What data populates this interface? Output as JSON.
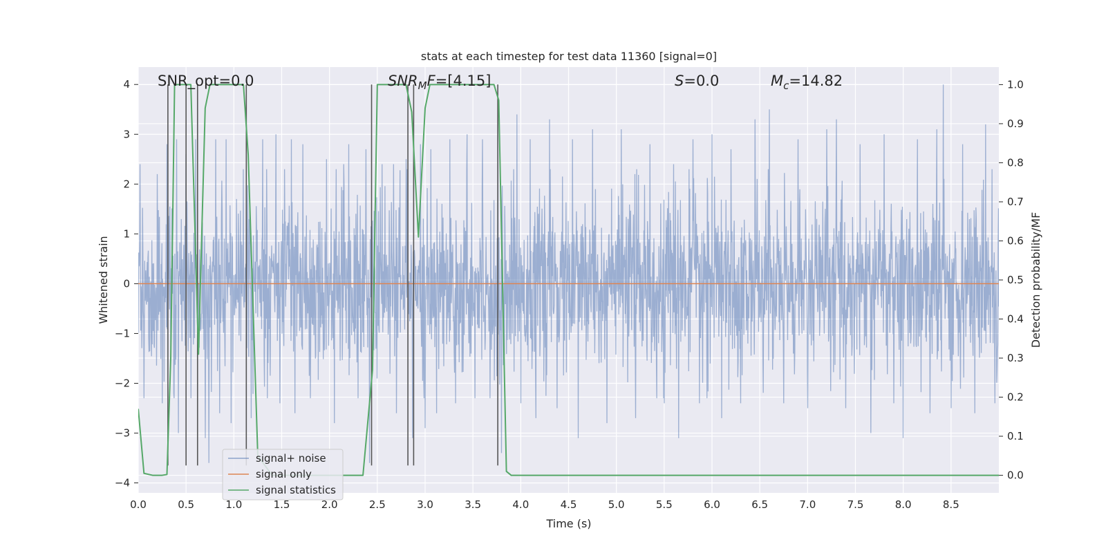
{
  "chart_data": {
    "type": "line",
    "title": "stats at each timestep for test data 11360 [signal=0]",
    "xlabel": "Time (s)",
    "ylabel": "Whitened strain",
    "ylabel_right": "Detection probability/MF",
    "xlim": [
      0.0,
      9.0
    ],
    "ylim": [
      -4.2,
      4.35
    ],
    "ylim_right": [
      -0.045,
      1.045
    ],
    "grid": true,
    "legend_position": "lower-left",
    "x_ticks": [
      "0.0",
      "0.5",
      "1.0",
      "1.5",
      "2.0",
      "2.5",
      "3.0",
      "3.5",
      "4.0",
      "4.5",
      "5.0",
      "5.5",
      "6.0",
      "6.5",
      "7.0",
      "7.5",
      "8.0",
      "8.5"
    ],
    "y_ticks": [
      "4",
      "3",
      "2",
      "1",
      "0",
      "−1",
      "−2",
      "−3",
      "−4"
    ],
    "y_ticks_right": [
      "1.0",
      "0.9",
      "0.8",
      "0.7",
      "0.6",
      "0.5",
      "0.4",
      "0.3",
      "0.2",
      "0.1",
      "0.0"
    ],
    "annotations": [
      {
        "id": "snr-opt",
        "parts": [
          {
            "text": "SNR_opt=0.0",
            "italic": false
          }
        ]
      },
      {
        "id": "snr-mf",
        "parts": [
          {
            "text": "SNR",
            "italic": true
          },
          {
            "text": "M",
            "italic": true,
            "sub": true
          },
          {
            "text": "F",
            "italic": true
          },
          {
            "text": "=[4.15]",
            "italic": false
          }
        ]
      },
      {
        "id": "s-value",
        "parts": [
          {
            "text": "S",
            "italic": true
          },
          {
            "text": "=0.0",
            "italic": false
          }
        ]
      },
      {
        "id": "mc-value",
        "parts": [
          {
            "text": "M",
            "italic": true
          },
          {
            "text": "c",
            "italic": true,
            "sub": true
          },
          {
            "text": "=14.82",
            "italic": false
          }
        ]
      }
    ],
    "series": [
      {
        "name": "signal+ noise",
        "color": "#4c72b0",
        "kind": "noise",
        "axis": "left",
        "noise_sigma": 1.0,
        "peaks": [
          [
            0.02,
            2.4
          ],
          [
            0.06,
            -2.3
          ],
          [
            0.2,
            2.2
          ],
          [
            0.25,
            -2.4
          ],
          [
            0.3,
            2.8
          ],
          [
            0.37,
            -2.2
          ],
          [
            0.4,
            2.9
          ],
          [
            0.42,
            -3.0
          ],
          [
            0.5,
            2.6
          ],
          [
            0.55,
            -2.3
          ],
          [
            0.6,
            2.9
          ],
          [
            0.7,
            -3.1
          ],
          [
            0.74,
            -3.6
          ],
          [
            0.81,
            2.9
          ],
          [
            0.85,
            -2.6
          ],
          [
            0.92,
            2.9
          ],
          [
            0.97,
            -2.8
          ],
          [
            1.1,
            2.3
          ],
          [
            1.18,
            -2.7
          ],
          [
            1.3,
            2.9
          ],
          [
            1.35,
            -2.3
          ],
          [
            1.44,
            3.0
          ],
          [
            1.48,
            -2.4
          ],
          [
            1.6,
            2.9
          ],
          [
            1.64,
            -2.6
          ],
          [
            1.72,
            2.8
          ],
          [
            1.8,
            -2.3
          ],
          [
            1.97,
            2.5
          ],
          [
            2.05,
            -2.8
          ],
          [
            2.15,
            2.4
          ],
          [
            2.2,
            2.8
          ],
          [
            2.3,
            -2.3
          ],
          [
            2.38,
            2.7
          ],
          [
            2.42,
            -3.6
          ],
          [
            2.55,
            2.4
          ],
          [
            2.67,
            2.4
          ],
          [
            2.7,
            -2.6
          ],
          [
            2.8,
            2.5
          ],
          [
            2.87,
            -3.1
          ],
          [
            2.95,
            2.8
          ],
          [
            3.0,
            -2.9
          ],
          [
            3.06,
            2.7
          ],
          [
            3.12,
            -2.6
          ],
          [
            3.26,
            2.9
          ],
          [
            3.32,
            -2.4
          ],
          [
            3.44,
            3.0
          ],
          [
            3.52,
            -2.3
          ],
          [
            3.6,
            2.9
          ],
          [
            3.68,
            -2.3
          ],
          [
            3.76,
            3.3
          ],
          [
            3.8,
            -3.4
          ],
          [
            3.96,
            3.4
          ],
          [
            4.0,
            -2.4
          ],
          [
            4.1,
            2.9
          ],
          [
            4.16,
            -2.7
          ],
          [
            4.3,
            3.3
          ],
          [
            4.38,
            -2.5
          ],
          [
            4.54,
            2.9
          ],
          [
            4.6,
            -3.1
          ],
          [
            4.75,
            3.1
          ],
          [
            4.9,
            -2.8
          ],
          [
            5.05,
            3.1
          ],
          [
            5.2,
            -2.7
          ],
          [
            5.35,
            2.8
          ],
          [
            5.5,
            -2.4
          ],
          [
            5.6,
            2.4
          ],
          [
            5.65,
            -3.1
          ],
          [
            5.8,
            2.9
          ],
          [
            5.87,
            -2.4
          ],
          [
            6.0,
            3.0
          ],
          [
            6.1,
            -2.7
          ],
          [
            6.2,
            2.7
          ],
          [
            6.3,
            -2.4
          ],
          [
            6.45,
            3.3
          ],
          [
            6.6,
            3.5
          ],
          [
            6.75,
            -2.4
          ],
          [
            6.9,
            2.9
          ],
          [
            7.0,
            -2.5
          ],
          [
            7.2,
            3.1
          ],
          [
            7.3,
            3.3
          ],
          [
            7.4,
            -2.5
          ],
          [
            7.55,
            2.8
          ],
          [
            7.66,
            -3.0
          ],
          [
            7.8,
            3.0
          ],
          [
            7.9,
            -2.4
          ],
          [
            8.0,
            -3.1
          ],
          [
            8.15,
            2.9
          ],
          [
            8.28,
            -2.6
          ],
          [
            8.35,
            3.1
          ],
          [
            8.42,
            4.0
          ],
          [
            8.5,
            -2.5
          ],
          [
            8.62,
            2.8
          ],
          [
            8.75,
            -2.6
          ],
          [
            8.86,
            3.2
          ],
          [
            8.96,
            -2.4
          ]
        ]
      },
      {
        "name": "signal only",
        "color": "#dd8452",
        "kind": "line",
        "axis": "left",
        "x": [
          0.0,
          9.0
        ],
        "y": [
          0.0,
          0.0
        ]
      },
      {
        "name": "signal statistics",
        "color": "#55a868",
        "kind": "line",
        "axis": "right",
        "x": [
          0.0,
          0.06,
          0.15,
          0.25,
          0.3,
          0.34,
          0.38,
          0.5,
          0.55,
          0.63,
          0.7,
          0.75,
          0.82,
          1.1,
          1.15,
          1.25,
          1.4,
          1.8,
          2.0,
          2.2,
          2.35,
          2.45,
          2.5,
          2.55,
          2.8,
          2.86,
          2.93,
          3.0,
          3.05,
          3.12,
          3.65,
          3.72,
          3.77,
          3.85,
          3.9,
          9.0
        ],
        "y": [
          0.17,
          0.005,
          0.0,
          0.0,
          0.002,
          0.3,
          1.0,
          1.0,
          1.0,
          0.31,
          0.94,
          1.0,
          1.0,
          1.0,
          0.82,
          0.05,
          0.0,
          0.0,
          0.0,
          0.0,
          0.0,
          0.27,
          1.0,
          1.0,
          1.0,
          0.93,
          0.61,
          0.94,
          1.0,
          1.0,
          1.0,
          1.0,
          0.96,
          0.01,
          0.0,
          0.0
        ]
      }
    ],
    "vertical_lines": {
      "color": "#555555",
      "from_y": -3.65,
      "to_y": 4.0,
      "x": [
        0.31,
        0.5,
        0.62,
        1.13,
        2.44,
        2.82,
        2.88,
        3.76
      ]
    }
  }
}
